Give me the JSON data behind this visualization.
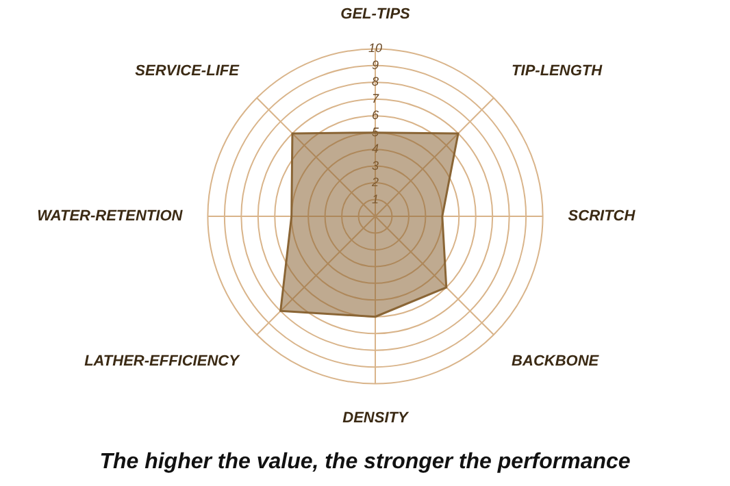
{
  "chart_data": {
    "type": "radar",
    "title": "The higher the value, the stronger the performance",
    "categories": [
      "GEL-TIPS",
      "TIP-LENGTH",
      "SCRITCH",
      "BACKBONE",
      "DENSITY",
      "LATHER-EFFICIENCY",
      "WATER-RETENTION",
      "SERVICE-LIFE"
    ],
    "series": [
      {
        "color": "#8a6535",
        "values": [
          5,
          7,
          4,
          6,
          6,
          8,
          5,
          7
        ]
      }
    ],
    "ylim": [
      0,
      10
    ],
    "yticks": [
      1,
      2,
      3,
      4,
      5,
      6,
      7,
      8,
      9,
      10
    ],
    "grid": true,
    "legend": false,
    "marker": "none",
    "line_style": "solid"
  }
}
